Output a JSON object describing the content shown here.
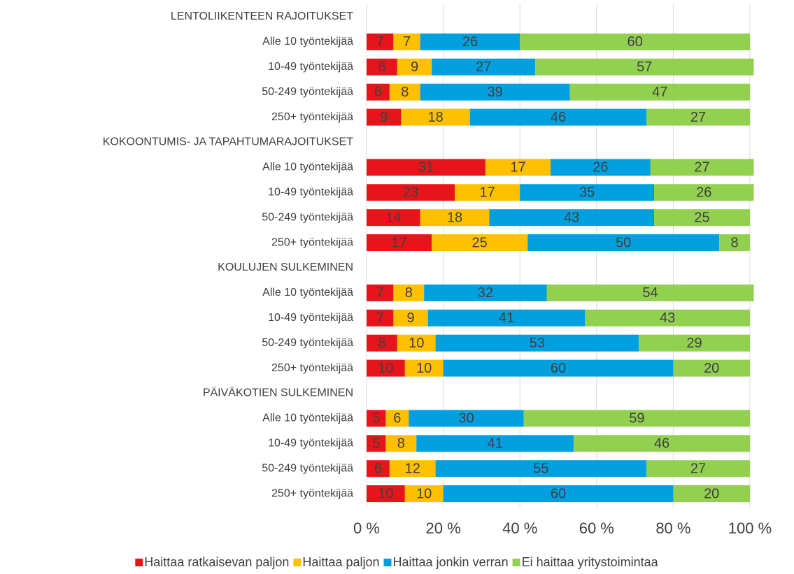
{
  "chart_data": {
    "type": "stacked_barh",
    "categories": [
      "LENTOLIIKENTEEN RAJOITUKSET",
      "Alle 10 työntekijää",
      "10-49 työntekijää",
      "50-249 työntekijää",
      "250+ työntekijää",
      "KOKOONTUMIS- JA TAPAHTUMARAJOITUKSET",
      "Alle 10 työntekijää",
      "10-49 työntekijää",
      "50-249 työntekijää",
      "250+ työntekijää",
      "KOULUJEN SULKEMINEN",
      "Alle 10 työntekijää",
      "10-49 työntekijää",
      "50-249 työntekijää",
      "250+ työntekijää",
      "PÄIVÄKOTIEN SULKEMINEN",
      "Alle 10 työntekijää",
      "10-49 työntekijää",
      "50-249 työntekijää",
      "250+ työntekijää"
    ],
    "series": [
      {
        "name": "Haittaa ratkaisevan paljon",
        "color": "#e8141b",
        "values": [
          null,
          7,
          8,
          6,
          9,
          null,
          31,
          23,
          14,
          17,
          null,
          7,
          7,
          8,
          10,
          null,
          5,
          5,
          6,
          10
        ]
      },
      {
        "name": "Haittaa paljon",
        "color": "#ffc000",
        "values": [
          null,
          7,
          9,
          8,
          18,
          null,
          17,
          17,
          18,
          25,
          null,
          8,
          9,
          10,
          10,
          null,
          6,
          8,
          12,
          10
        ]
      },
      {
        "name": "Haittaa jonkin verran",
        "color": "#00a0e0",
        "values": [
          null,
          26,
          27,
          39,
          46,
          null,
          26,
          35,
          43,
          50,
          null,
          32,
          41,
          53,
          60,
          null,
          30,
          41,
          55,
          60
        ]
      },
      {
        "name": "Ei haittaa yritystoimintaa",
        "color": "#92d050",
        "values": [
          null,
          60,
          57,
          47,
          27,
          null,
          27,
          26,
          25,
          8,
          null,
          54,
          43,
          29,
          20,
          null,
          59,
          46,
          27,
          20
        ]
      }
    ],
    "xlim": [
      0,
      100
    ],
    "xticks": [
      {
        "value": 0,
        "label": "0 %"
      },
      {
        "value": 20,
        "label": "20 %"
      },
      {
        "value": 40,
        "label": "40 %"
      },
      {
        "value": 60,
        "label": "60 %"
      },
      {
        "value": 80,
        "label": "80 %"
      },
      {
        "value": 100,
        "label": "100 %"
      }
    ],
    "grid": true,
    "legend": "bottom"
  }
}
